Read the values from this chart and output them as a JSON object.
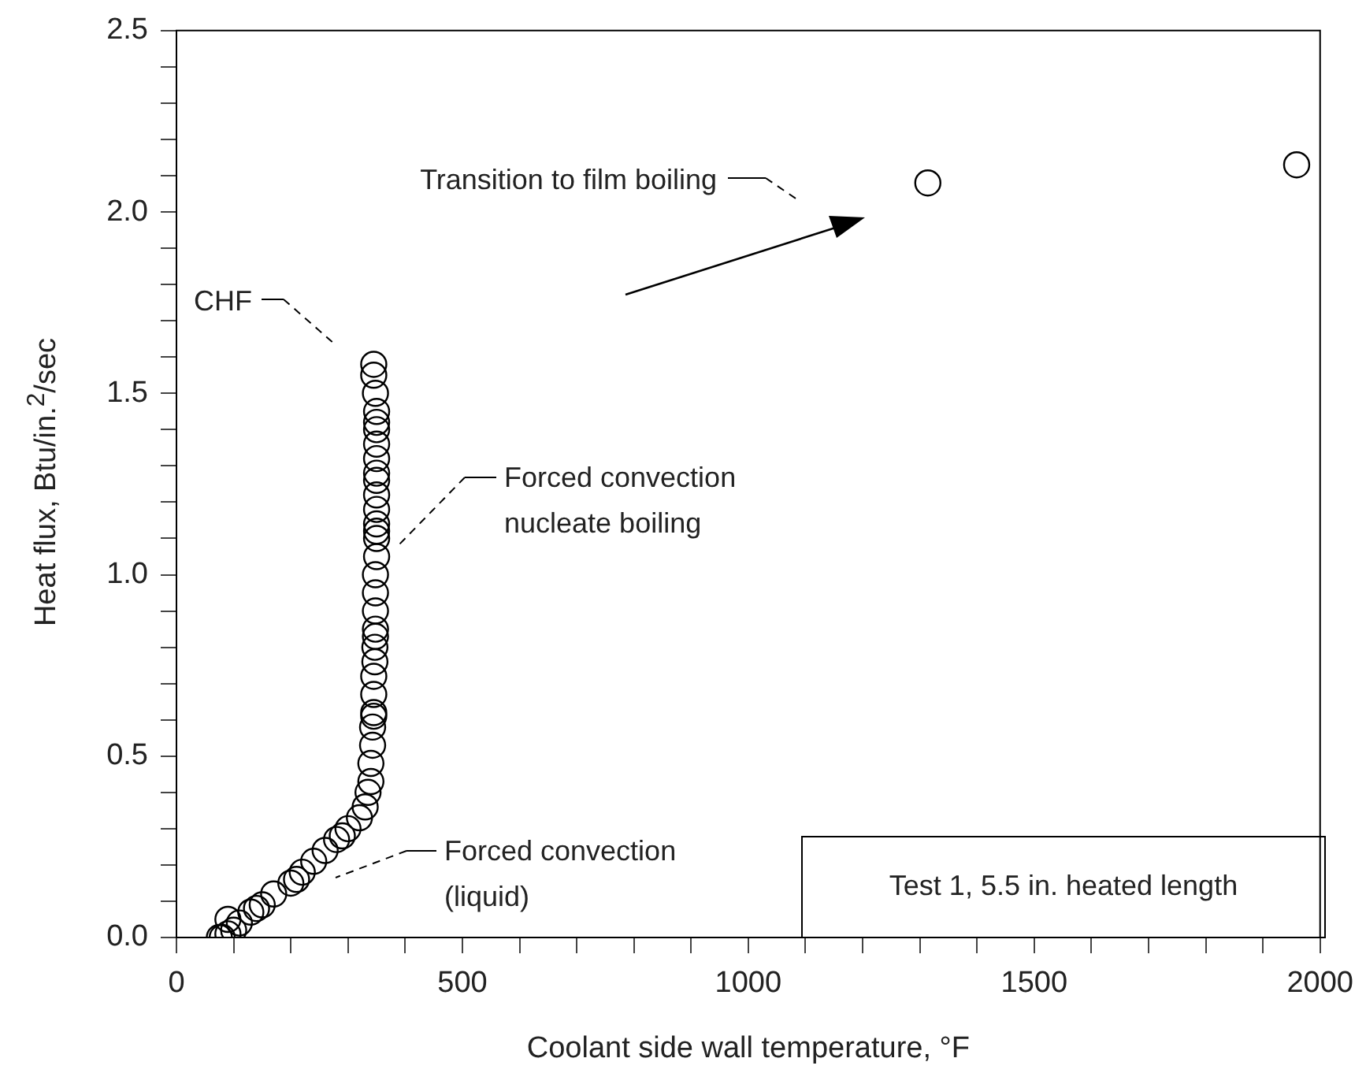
{
  "chart_data": {
    "type": "scatter",
    "xlabel": "Coolant side wall temperature, °F",
    "ylabel": "Heat flux, Btu/in.$^{2}$/sec",
    "xlim": [
      0,
      2000
    ],
    "ylim": [
      0,
      2.5
    ],
    "xticks": [
      0,
      {
        "value": 100,
        "label": null
      },
      {
        "value": 200,
        "label": null
      },
      {
        "value": 300,
        "label": null
      },
      {
        "value": 400,
        "label": null
      },
      500,
      {
        "value": 600,
        "label": null
      },
      {
        "value": 700,
        "label": null
      },
      {
        "value": 800,
        "label": null
      },
      {
        "value": 900,
        "label": null
      },
      1000,
      {
        "value": 1100,
        "label": null
      },
      {
        "value": 1200,
        "label": null
      },
      {
        "value": 1300,
        "label": null
      },
      {
        "value": 1400,
        "label": null
      },
      1500,
      {
        "value": 1600,
        "label": null
      },
      {
        "value": 1700,
        "label": null
      },
      {
        "value": 1800,
        "label": null
      },
      {
        "value": 1900,
        "label": null
      },
      2000
    ],
    "yticks": [
      {
        "value": 0,
        "label": "0.0"
      },
      {
        "value": 0.1,
        "label": null
      },
      {
        "value": 0.2,
        "label": null
      },
      {
        "value": 0.3,
        "label": null
      },
      {
        "value": 0.4,
        "label": null
      },
      {
        "value": 0.5,
        "label": "0.5"
      },
      {
        "value": 0.6,
        "label": null
      },
      {
        "value": 0.7,
        "label": null
      },
      {
        "value": 0.8,
        "label": null
      },
      {
        "value": 0.9,
        "label": null
      },
      {
        "value": 1,
        "label": "1.0"
      },
      {
        "value": 1.1,
        "label": null
      },
      {
        "value": 1.2,
        "label": null
      },
      {
        "value": 1.3,
        "label": null
      },
      {
        "value": 1.4,
        "label": null
      },
      {
        "value": 1.5,
        "label": "1.5"
      },
      {
        "value": 1.6,
        "label": null
      },
      {
        "value": 1.7,
        "label": null
      },
      {
        "value": 1.8,
        "label": null
      },
      {
        "value": 1.9,
        "label": null
      },
      {
        "value": 2,
        "label": "2.0"
      },
      {
        "value": 2.1,
        "label": null
      },
      {
        "value": 2.2,
        "label": null
      },
      {
        "value": 2.3,
        "label": null
      },
      {
        "value": 2.4,
        "label": null
      },
      {
        "value": 2.5,
        "label": "2.5"
      }
    ],
    "grid": false,
    "legend": false,
    "marker": "circle",
    "series": [
      {
        "color": "#000000",
        "x": [
          75,
          80,
          90,
          100,
          90,
          110,
          130,
          140,
          150,
          170,
          200,
          210,
          220,
          240,
          260,
          280,
          290,
          300,
          320,
          330,
          335,
          340,
          340,
          343,
          343,
          345,
          345,
          345,
          345,
          347,
          347,
          348,
          348,
          348,
          348,
          348,
          350,
          350,
          350,
          350,
          350,
          350,
          350,
          350,
          350,
          350,
          350,
          350,
          350,
          348,
          345,
          345,
          1314,
          1959
        ],
        "values": [
          0,
          0,
          0.01,
          0.02,
          0.05,
          0.04,
          0.07,
          0.08,
          0.09,
          0.12,
          0.15,
          0.16,
          0.18,
          0.21,
          0.24,
          0.27,
          0.28,
          0.3,
          0.33,
          0.36,
          0.4,
          0.43,
          0.48,
          0.53,
          0.58,
          0.61,
          0.62,
          0.67,
          0.72,
          0.76,
          0.8,
          0.83,
          0.85,
          0.9,
          0.95,
          1.0,
          1.05,
          1.1,
          1.12,
          1.14,
          1.18,
          1.22,
          1.26,
          1.28,
          1.32,
          1.36,
          1.4,
          1.42,
          1.45,
          1.5,
          1.55,
          1.58,
          2.08,
          2.13
        ]
      }
    ],
    "annotations": [
      "Transition to film boiling",
      "CHF",
      "Forced convection\nnucleate boiling",
      "Forced convection\n(liquid)",
      "Test 1, 5.5 in. heated length"
    ]
  }
}
